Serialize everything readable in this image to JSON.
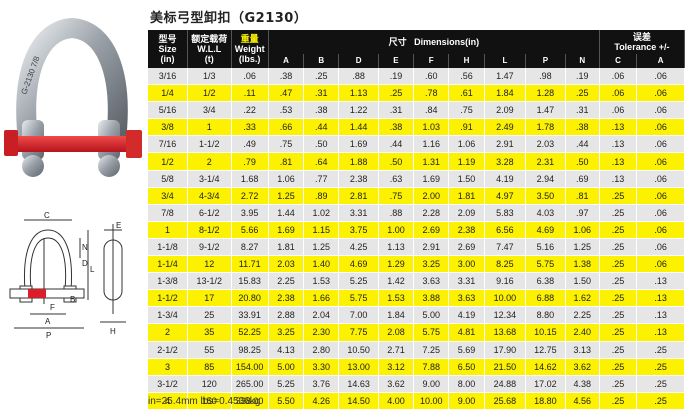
{
  "title": "美标弓型卸扣（G2130）",
  "header": {
    "size_cn": "型号",
    "size_en": "Size",
    "size_unit": "(in)",
    "wll_cn": "额定载荷",
    "wll_en": "W.L.L",
    "wll_unit": "(t)",
    "weight_cn": "重量",
    "weight_en": "Weight",
    "weight_unit": "(lbs.)",
    "dims_cn": "尺寸",
    "dims_en": "Dimensions(in)",
    "tol_cn": "误差",
    "tol_en": "Tolerance +/-",
    "dim_cols": [
      "A",
      "B",
      "D",
      "E",
      "F",
      "H",
      "L",
      "P",
      "N"
    ],
    "tol_cols": [
      "C",
      "A"
    ]
  },
  "rows": [
    [
      "3/16",
      "1/3",
      ".06",
      ".38",
      ".25",
      ".88",
      ".19",
      ".60",
      ".56",
      "1.47",
      ".98",
      ".19",
      ".06",
      ".06"
    ],
    [
      "1/4",
      "1/2",
      ".11",
      ".47",
      ".31",
      "1.13",
      ".25",
      ".78",
      ".61",
      "1.84",
      "1.28",
      ".25",
      ".06",
      ".06"
    ],
    [
      "5/16",
      "3/4",
      ".22",
      ".53",
      ".38",
      "1.22",
      ".31",
      ".84",
      ".75",
      "2.09",
      "1.47",
      ".31",
      ".06",
      ".06"
    ],
    [
      "3/8",
      "1",
      ".33",
      ".66",
      ".44",
      "1.44",
      ".38",
      "1.03",
      ".91",
      "2.49",
      "1.78",
      ".38",
      ".13",
      ".06"
    ],
    [
      "7/16",
      "1-1/2",
      ".49",
      ".75",
      ".50",
      "1.69",
      ".44",
      "1.16",
      "1.06",
      "2.91",
      "2.03",
      ".44",
      ".13",
      ".06"
    ],
    [
      "1/2",
      "2",
      ".79",
      ".81",
      ".64",
      "1.88",
      ".50",
      "1.31",
      "1.19",
      "3.28",
      "2.31",
      ".50",
      ".13",
      ".06"
    ],
    [
      "5/8",
      "3-1/4",
      "1.68",
      "1.06",
      ".77",
      "2.38",
      ".63",
      "1.69",
      "1.50",
      "4.19",
      "2.94",
      ".69",
      ".13",
      ".06"
    ],
    [
      "3/4",
      "4-3/4",
      "2.72",
      "1.25",
      ".89",
      "2.81",
      ".75",
      "2.00",
      "1.81",
      "4.97",
      "3.50",
      ".81",
      ".25",
      ".06"
    ],
    [
      "7/8",
      "6-1/2",
      "3.95",
      "1.44",
      "1.02",
      "3.31",
      ".88",
      "2.28",
      "2.09",
      "5.83",
      "4.03",
      ".97",
      ".25",
      ".06"
    ],
    [
      "1",
      "8-1/2",
      "5.66",
      "1.69",
      "1.15",
      "3.75",
      "1.00",
      "2.69",
      "2.38",
      "6.56",
      "4.69",
      "1.06",
      ".25",
      ".06"
    ],
    [
      "1-1/8",
      "9-1/2",
      "8.27",
      "1.81",
      "1.25",
      "4.25",
      "1.13",
      "2.91",
      "2.69",
      "7.47",
      "5.16",
      "1.25",
      ".25",
      ".06"
    ],
    [
      "1-1/4",
      "12",
      "11.71",
      "2.03",
      "1.40",
      "4.69",
      "1.29",
      "3.25",
      "3.00",
      "8.25",
      "5.75",
      "1.38",
      ".25",
      ".06"
    ],
    [
      "1-3/8",
      "13-1/2",
      "15.83",
      "2.25",
      "1.53",
      "5.25",
      "1.42",
      "3.63",
      "3.31",
      "9.16",
      "6.38",
      "1.50",
      ".25",
      ".13"
    ],
    [
      "1-1/2",
      "17",
      "20.80",
      "2.38",
      "1.66",
      "5.75",
      "1.53",
      "3.88",
      "3.63",
      "10.00",
      "6.88",
      "1.62",
      ".25",
      ".13"
    ],
    [
      "1-3/4",
      "25",
      "33.91",
      "2.88",
      "2.04",
      "7.00",
      "1.84",
      "5.00",
      "4.19",
      "12.34",
      "8.80",
      "2.25",
      ".25",
      ".13"
    ],
    [
      "2",
      "35",
      "52.25",
      "3.25",
      "2.30",
      "7.75",
      "2.08",
      "5.75",
      "4.81",
      "13.68",
      "10.15",
      "2.40",
      ".25",
      ".13"
    ],
    [
      "2-1/2",
      "55",
      "98.25",
      "4.13",
      "2.80",
      "10.50",
      "2.71",
      "7.25",
      "5.69",
      "17.90",
      "12.75",
      "3.13",
      ".25",
      ".25"
    ],
    [
      "3",
      "85",
      "154.00",
      "5.00",
      "3.30",
      "13.00",
      "3.12",
      "7.88",
      "6.50",
      "21.50",
      "14.62",
      "3.62",
      ".25",
      ".25"
    ],
    [
      "3-1/2",
      "120",
      "265.00",
      "5.25",
      "3.76",
      "14.63",
      "3.62",
      "9.00",
      "8.00",
      "24.88",
      "17.02",
      "4.38",
      ".25",
      ".25"
    ],
    [
      "4",
      "150",
      "338.00",
      "5.50",
      "4.26",
      "14.50",
      "4.00",
      "10.00",
      "9.00",
      "25.68",
      "18.80",
      "4.56",
      ".25",
      ".25"
    ]
  ],
  "diagram_labels": {
    "front": [
      "C",
      "N",
      "D",
      "L",
      "B",
      "F",
      "A",
      "P"
    ],
    "side": [
      "E",
      "H"
    ]
  },
  "shackle_markings": "G-2130 7/8",
  "footer": "in=25.4mm    lbs=0.4536kg",
  "colors": {
    "yellow": "#fbf100",
    "gray": "#e6e6e6",
    "header": "#111111",
    "pin": "#d9202a"
  }
}
